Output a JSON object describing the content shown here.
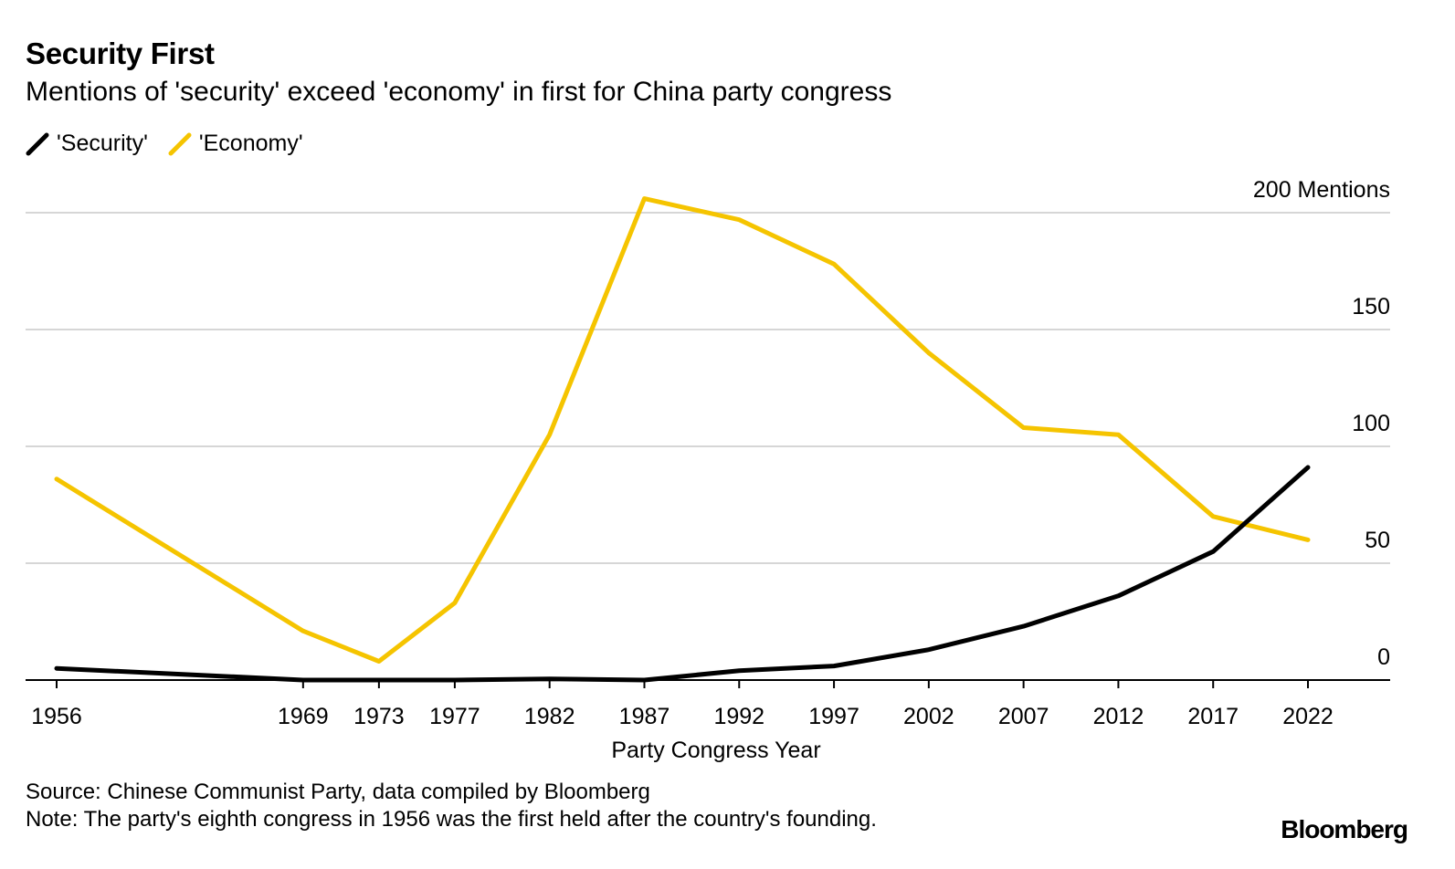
{
  "title": "Security First",
  "subtitle": "Mentions of 'security' exceed 'economy' in first for China party congress",
  "legend": [
    {
      "label": "'Security'",
      "color": "#000000"
    },
    {
      "label": "'Economy'",
      "color": "#f5c400"
    }
  ],
  "chart_data": {
    "type": "line",
    "x": [
      1956,
      1969,
      1973,
      1977,
      1982,
      1987,
      1992,
      1997,
      2002,
      2007,
      2012,
      2017,
      2022
    ],
    "series": [
      {
        "name": "'Security'",
        "color": "#000000",
        "values": [
          5,
          0,
          0,
          0,
          0.5,
          0,
          4,
          6,
          13,
          23,
          36,
          55,
          91
        ]
      },
      {
        "name": "'Economy'",
        "color": "#f5c400",
        "values": [
          86,
          21,
          8,
          33,
          105,
          206,
          197,
          178,
          140,
          108,
          105,
          70,
          60
        ]
      }
    ],
    "xlabel": "Party Congress Year",
    "ylabel": "",
    "ylim": [
      0,
      200
    ],
    "yticks": [
      0,
      50,
      100,
      150,
      200
    ],
    "ytick_labels": [
      "0",
      "50",
      "100",
      "150",
      "200 Mentions"
    ],
    "grid": true,
    "legend_position": "top-left"
  },
  "source": "Source: Chinese Communist Party, data compiled by Bloomberg",
  "note": "Note: The party's eighth congress in 1956 was the first held after the country's founding.",
  "brand": "Bloomberg"
}
